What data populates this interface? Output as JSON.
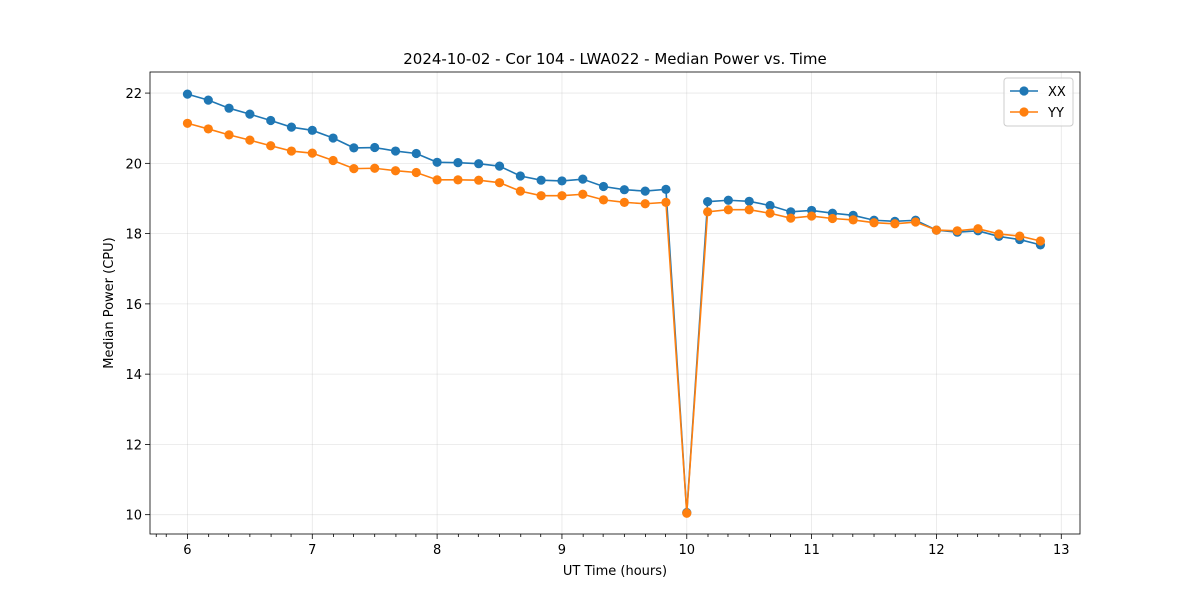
{
  "chart_data": {
    "type": "line",
    "title": "2024-10-02 - Cor 104 - LWA022 - Median Power vs. Time",
    "xlabel": "UT Time (hours)",
    "ylabel": "Median Power (CPU)",
    "xlim": [
      5.7,
      13.15
    ],
    "ylim": [
      9.45,
      22.6
    ],
    "xticks": [
      6,
      7,
      8,
      9,
      10,
      11,
      12,
      13
    ],
    "yticks": [
      10,
      12,
      14,
      16,
      18,
      20,
      22
    ],
    "x_minor_ticks": [
      5.75,
      5.83,
      6.17,
      6.33,
      6.5,
      6.67,
      6.83,
      7.17,
      7.33,
      7.5,
      7.67,
      7.83,
      8.17,
      8.33,
      8.5,
      8.67,
      8.83,
      9.17,
      9.33,
      9.5,
      9.67,
      9.83,
      10.17,
      10.33,
      10.5,
      10.67,
      10.83,
      11.17,
      11.33,
      11.5,
      11.67,
      11.83,
      12.17,
      12.33,
      12.5,
      12.67,
      12.83,
      13.17
    ],
    "grid": true,
    "legend_position": "top-right",
    "x": [
      6.0,
      6.167,
      6.333,
      6.5,
      6.667,
      6.833,
      7.0,
      7.167,
      7.333,
      7.5,
      7.667,
      7.833,
      8.0,
      8.167,
      8.333,
      8.5,
      8.667,
      8.833,
      9.0,
      9.167,
      9.333,
      9.5,
      9.667,
      9.833,
      10.0,
      10.167,
      10.333,
      10.5,
      10.667,
      10.833,
      11.0,
      11.167,
      11.333,
      11.5,
      11.667,
      11.833,
      12.0,
      12.167,
      12.333,
      12.5,
      12.667,
      12.833
    ],
    "series": [
      {
        "name": "XX",
        "color": "#1f77b4",
        "values": [
          21.97,
          21.8,
          21.57,
          21.4,
          21.22,
          21.03,
          20.94,
          20.72,
          20.44,
          20.45,
          20.35,
          20.28,
          20.03,
          20.02,
          19.99,
          19.92,
          19.64,
          19.52,
          19.5,
          19.55,
          19.34,
          19.25,
          19.21,
          19.26,
          10.06,
          18.91,
          18.95,
          18.92,
          18.8,
          18.62,
          18.66,
          18.58,
          18.52,
          18.38,
          18.35,
          18.38,
          18.1,
          18.04,
          18.08,
          17.92,
          17.83,
          17.68
        ]
      },
      {
        "name": "YY",
        "color": "#ff7f0e",
        "values": [
          21.14,
          20.98,
          20.81,
          20.66,
          20.5,
          20.35,
          20.29,
          20.08,
          19.85,
          19.86,
          19.79,
          19.74,
          19.53,
          19.53,
          19.52,
          19.45,
          19.21,
          19.08,
          19.08,
          19.12,
          18.96,
          18.89,
          18.85,
          18.89,
          10.04,
          18.62,
          18.68,
          18.68,
          18.58,
          18.44,
          18.5,
          18.43,
          18.39,
          18.31,
          18.28,
          18.33,
          18.1,
          18.08,
          18.14,
          17.99,
          17.93,
          17.79
        ]
      }
    ]
  }
}
